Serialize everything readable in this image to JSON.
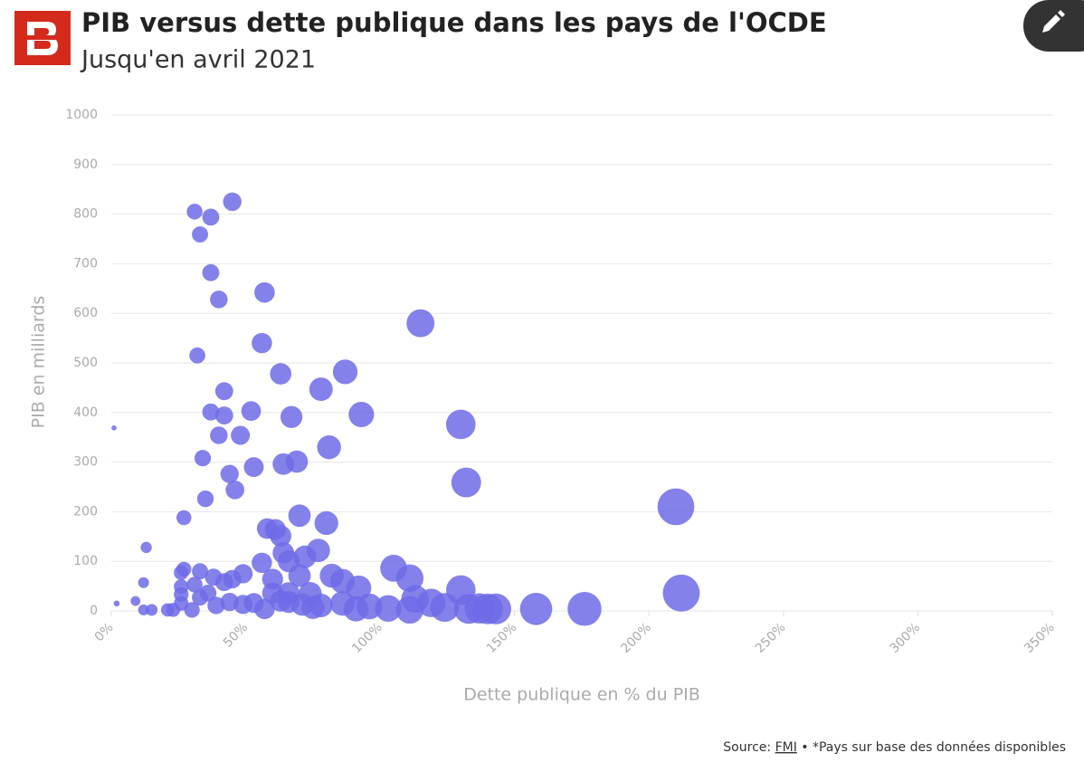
{
  "chart_data": {
    "type": "bubble",
    "title": "PIB versus dette publique dans les pays de l'OCDE",
    "subtitle": "Jusqu'en avril 2021",
    "x_label": "Dette publique en % du PIB",
    "y_label": "PIB en milliards",
    "color": "#6e6be8",
    "grid": true,
    "xlim": [
      0,
      350
    ],
    "ylim": [
      0,
      1000
    ],
    "xticks": [
      {
        "value": 0,
        "label": "0%"
      },
      {
        "value": 50,
        "label": "50%"
      },
      {
        "value": 100,
        "label": "100%"
      },
      {
        "value": 150,
        "label": "150%"
      },
      {
        "value": 200,
        "label": "200%"
      },
      {
        "value": 250,
        "label": "250%"
      },
      {
        "value": 300,
        "label": "300%"
      },
      {
        "value": 350,
        "label": "350%"
      }
    ],
    "yticks": [
      0,
      100,
      200,
      300,
      400,
      500,
      600,
      700,
      800,
      900,
      1000
    ],
    "x": [
      1,
      2,
      9,
      13,
      12,
      12,
      15,
      21,
      23,
      27,
      31,
      33,
      37,
      45,
      37,
      40,
      32,
      37,
      42,
      42,
      40,
      48,
      34,
      35,
      44,
      46,
      52,
      53,
      56,
      57,
      63,
      64,
      67,
      69,
      78,
      87,
      81,
      93,
      115,
      130,
      132,
      210,
      212,
      58,
      61,
      63,
      70,
      80,
      64,
      77,
      66,
      72,
      56,
      49,
      45,
      42,
      38,
      33,
      26,
      27,
      26,
      26,
      26,
      30,
      31,
      33,
      36,
      39,
      44,
      49,
      53,
      57,
      60,
      63,
      66,
      70,
      71,
      75,
      78,
      82,
      86,
      86,
      91,
      92,
      96,
      103,
      105,
      111,
      111,
      113,
      119,
      124,
      130,
      133,
      137,
      140,
      143,
      158,
      176,
      74,
      66,
      60
    ],
    "values": [
      369,
      15,
      20,
      128,
      57,
      2,
      2,
      2,
      2,
      188,
      805,
      759,
      794,
      825,
      682,
      628,
      515,
      401,
      394,
      443,
      354,
      354,
      308,
      226,
      276,
      244,
      403,
      290,
      540,
      642,
      478,
      296,
      391,
      301,
      447,
      482,
      330,
      396,
      580,
      376,
      259,
      210,
      36,
      166,
      164,
      151,
      192,
      177,
      117,
      122,
      100,
      109,
      97,
      75,
      64,
      58,
      68,
      80,
      77,
      84,
      49,
      33,
      15,
      2,
      53,
      27,
      36,
      11,
      18,
      13,
      16,
      4,
      64,
      20,
      18,
      71,
      13,
      7,
      11,
      71,
      60,
      15,
      4,
      46,
      9,
      5,
      86,
      66,
      2,
      24,
      16,
      7,
      42,
      4,
      5,
      4,
      4,
      4,
      4,
      35,
      36,
      36
    ]
  },
  "footer": {
    "source_label": "Source:",
    "source_link": "FMI",
    "note": "• *Pays sur base des données disponibles"
  }
}
